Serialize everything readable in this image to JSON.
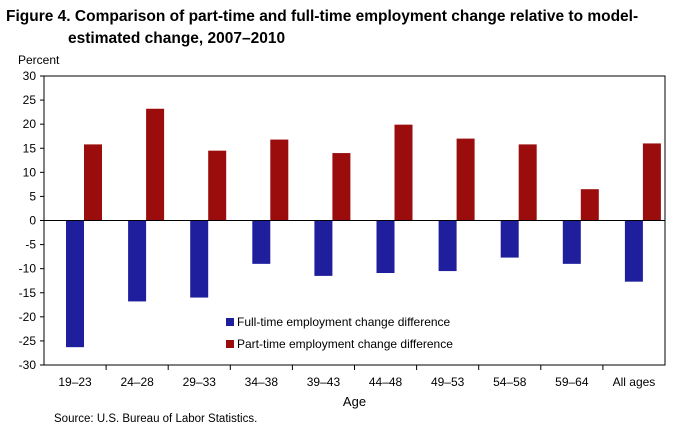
{
  "figure": {
    "title_line1": "Figure 4. Comparison of part-time and full-time employment change relative to model-",
    "title_line2": "estimated change, 2007–2010",
    "source": "Source: U.S. Bureau  of Labor Statistics."
  },
  "chart_data": {
    "type": "bar",
    "title": "Figure 4. Comparison of part-time and full-time employment change relative to model-estimated change, 2007–2010",
    "ylabel": "Percent",
    "xlabel": "Age",
    "ylim": [
      -30,
      30
    ],
    "yticks": [
      30,
      25,
      20,
      15,
      10,
      5,
      0,
      -5,
      -10,
      -15,
      -20,
      -25,
      -30
    ],
    "categories": [
      "19–23",
      "24–28",
      "29–33",
      "34–38",
      "39–43",
      "44–48",
      "49–53",
      "54–58",
      "59–64",
      "All ages"
    ],
    "series": [
      {
        "name": "Full-time employment change difference",
        "color": "#1f1f9e",
        "values": [
          -26.3,
          -16.8,
          -16.0,
          -9.0,
          -11.5,
          -10.9,
          -10.5,
          -7.7,
          -9.0,
          -12.7
        ]
      },
      {
        "name": "Part-time employment change difference",
        "color": "#9b0d0d",
        "values": [
          15.8,
          23.2,
          14.5,
          16.8,
          14.0,
          19.9,
          17.0,
          15.8,
          6.5,
          16.0
        ]
      }
    ],
    "grid": false,
    "legend_position": "bottom-center"
  }
}
